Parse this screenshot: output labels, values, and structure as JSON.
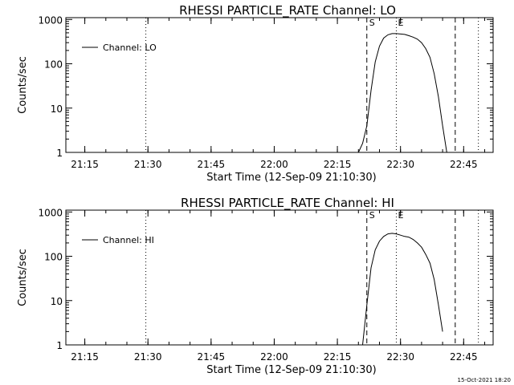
{
  "footer": {
    "timestamp": "15-Oct-2021 18:20"
  },
  "chart_data": [
    {
      "type": "line",
      "title": "RHESSI PARTICLE_RATE Channel: LO",
      "xlabel": "Start Time (12-Sep-09 21:10:30)",
      "ylabel": "Counts/sec",
      "yscale": "log",
      "ylim": [
        1,
        1000
      ],
      "xlim": [
        "21:10:30",
        "22:52:00"
      ],
      "xticks": [
        "21:15",
        "21:30",
        "21:45",
        "22:00",
        "22:15",
        "22:30",
        "22:45"
      ],
      "yticks": [
        "1",
        "10",
        "100",
        "1000"
      ],
      "grid": false,
      "legend": {
        "position": "top-left",
        "entries": [
          "Channel: LO"
        ]
      },
      "markers": [
        {
          "time": "21:29:30",
          "style": "dotted",
          "label": ""
        },
        {
          "time": "22:22:00",
          "style": "dashed",
          "label": "S"
        },
        {
          "time": "22:29:00",
          "style": "dotted",
          "label": "E"
        },
        {
          "time": "22:43:00",
          "style": "dashed",
          "label": ""
        },
        {
          "time": "22:48:30",
          "style": "dotted",
          "label": ""
        }
      ],
      "series": [
        {
          "name": "Channel: LO",
          "x": [
            "22:20:00",
            "22:21:00",
            "22:22:00",
            "22:23:00",
            "22:24:00",
            "22:25:00",
            "22:26:00",
            "22:27:00",
            "22:28:00",
            "22:29:00",
            "22:30:00",
            "22:31:00",
            "22:32:00",
            "22:33:00",
            "22:34:00",
            "22:35:00",
            "22:36:00",
            "22:37:00",
            "22:38:00",
            "22:39:00",
            "22:40:00",
            "22:41:00"
          ],
          "y": [
            1,
            1.6,
            4,
            25,
            110,
            250,
            380,
            450,
            480,
            480,
            470,
            460,
            430,
            400,
            360,
            300,
            220,
            140,
            60,
            18,
            4,
            1
          ]
        }
      ]
    },
    {
      "type": "line",
      "title": "RHESSI PARTICLE_RATE Channel: HI",
      "xlabel": "Start Time (12-Sep-09 21:10:30)",
      "ylabel": "Counts/sec",
      "yscale": "log",
      "ylim": [
        1,
        1000
      ],
      "xlim": [
        "21:10:30",
        "22:52:00"
      ],
      "xticks": [
        "21:15",
        "21:30",
        "21:45",
        "22:00",
        "22:15",
        "22:30",
        "22:45"
      ],
      "yticks": [
        "1",
        "10",
        "100",
        "1000"
      ],
      "grid": false,
      "legend": {
        "position": "top-left",
        "entries": [
          "Channel: HI"
        ]
      },
      "markers": [
        {
          "time": "21:29:30",
          "style": "dotted",
          "label": ""
        },
        {
          "time": "22:22:00",
          "style": "dashed",
          "label": "S"
        },
        {
          "time": "22:29:00",
          "style": "dotted",
          "label": "E"
        },
        {
          "time": "22:43:00",
          "style": "dashed",
          "label": ""
        },
        {
          "time": "22:48:30",
          "style": "dotted",
          "label": ""
        }
      ],
      "series": [
        {
          "name": "Channel: HI",
          "x": [
            "22:21:00",
            "22:22:00",
            "22:23:00",
            "22:24:00",
            "22:25:00",
            "22:26:00",
            "22:27:00",
            "22:28:00",
            "22:29:00",
            "22:30:00",
            "22:31:00",
            "22:32:00",
            "22:33:00",
            "22:34:00",
            "22:35:00",
            "22:36:00",
            "22:37:00",
            "22:38:00",
            "22:39:00",
            "22:40:00"
          ],
          "y": [
            1,
            8,
            55,
            140,
            220,
            280,
            320,
            330,
            320,
            300,
            280,
            270,
            240,
            200,
            160,
            110,
            70,
            30,
            8,
            2
          ]
        }
      ]
    }
  ]
}
